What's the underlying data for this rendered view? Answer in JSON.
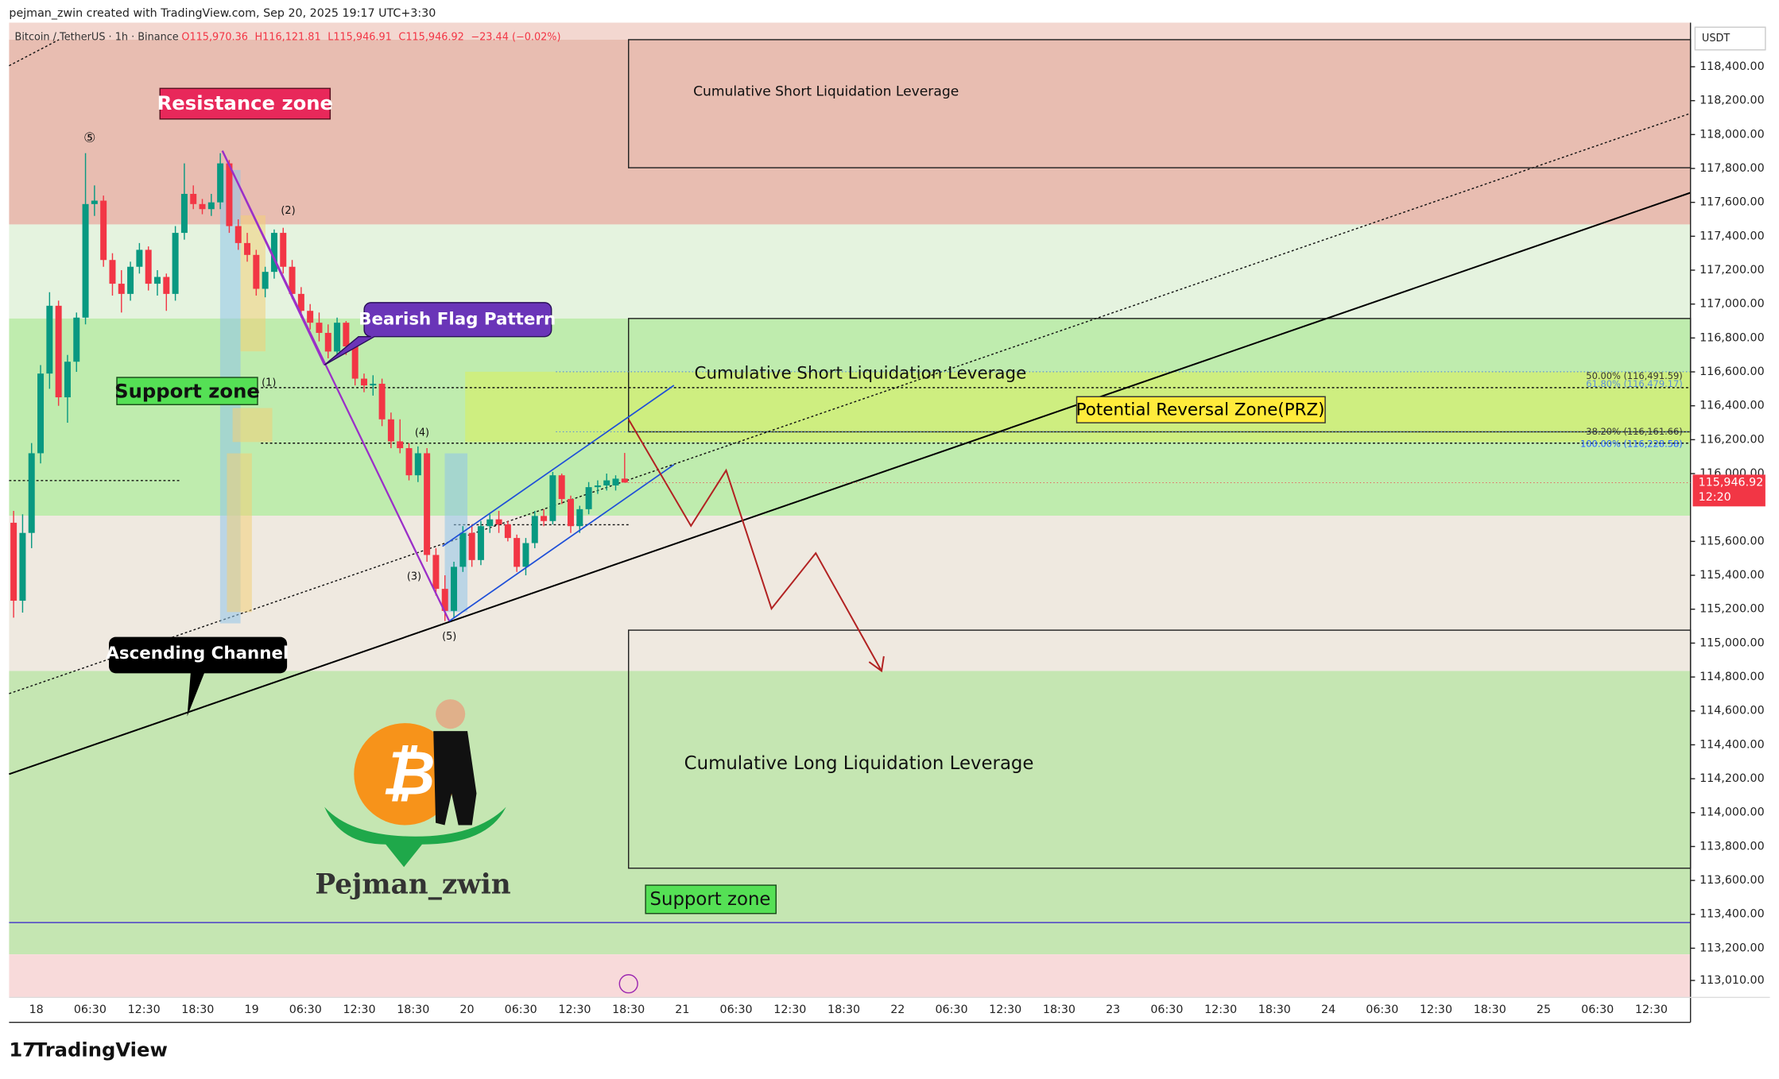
{
  "header": {
    "credit": "pejman_zwin created with TradingView.com, Sep 20, 2025 19:17 UTC+3:30",
    "symbol": "Bitcoin / TetherUS · 1h · Binance",
    "ohlc": [
      "O115,970.36",
      "H116,121.81",
      "L115,946.91",
      "C115,946.92",
      "−23.44 (−0.02%)"
    ]
  },
  "chart_data": {
    "type": "candlestick",
    "up_color": "#089981",
    "down_color": "#f23645",
    "currency": "USDT",
    "last_price_label": "115,946.92",
    "countdown": "12:20",
    "ylim": [
      112910,
      118660
    ],
    "yticks": [
      {
        "value": 113010,
        "label": "113,010.00"
      },
      {
        "value": 113200,
        "label": "113,200.00"
      },
      {
        "value": 113400,
        "label": "113,400.00"
      },
      {
        "value": 113600,
        "label": "113,600.00"
      },
      {
        "value": 113800,
        "label": "113,800.00"
      },
      {
        "value": 114000,
        "label": "114,000.00"
      },
      {
        "value": 114200,
        "label": "114,200.00"
      },
      {
        "value": 114400,
        "label": "114,400.00"
      },
      {
        "value": 114600,
        "label": "114,600.00"
      },
      {
        "value": 114800,
        "label": "114,800.00"
      },
      {
        "value": 115000,
        "label": "115,000.00"
      },
      {
        "value": 115200,
        "label": "115,200.00"
      },
      {
        "value": 115400,
        "label": "115,400.00"
      },
      {
        "value": 115600,
        "label": "115,600.00"
      },
      {
        "value": 116000,
        "label": "116,000.00"
      },
      {
        "value": 116200,
        "label": "116,200.00"
      },
      {
        "value": 116400,
        "label": "116,400.00"
      },
      {
        "value": 116600,
        "label": "116,600.00"
      },
      {
        "value": 116800,
        "label": "116,800.00"
      },
      {
        "value": 117000,
        "label": "117,000.00"
      },
      {
        "value": 117200,
        "label": "117,200.00"
      },
      {
        "value": 117400,
        "label": "117,400.00"
      },
      {
        "value": 117600,
        "label": "117,600.00"
      },
      {
        "value": 117800,
        "label": "117,800.00"
      },
      {
        "value": 118000,
        "label": "118,000.00"
      },
      {
        "value": 118200,
        "label": "118,200.00"
      },
      {
        "value": 118400,
        "label": "118,400.00"
      }
    ],
    "x_labels": [
      "18",
      "06:30",
      "12:30",
      "18:30",
      "19",
      "06:30",
      "12:30",
      "18:30",
      "20",
      "06:30",
      "12:30",
      "18:30",
      "21",
      "06:30",
      "12:30",
      "18:30",
      "22",
      "06:30",
      "12:30",
      "18:30",
      "23",
      "06:30",
      "12:30",
      "18:30",
      "24",
      "06:30",
      "12:30",
      "18:30",
      "25",
      "06:30",
      "12:30"
    ],
    "candles": [
      [
        115710,
        115780,
        115150,
        115250
      ],
      [
        115250,
        115760,
        115180,
        115650
      ],
      [
        115650,
        116180,
        115560,
        116120
      ],
      [
        116120,
        116640,
        116060,
        116590
      ],
      [
        116590,
        117070,
        116500,
        116990
      ],
      [
        116990,
        117020,
        116400,
        116450
      ],
      [
        116450,
        116700,
        116300,
        116660
      ],
      [
        116660,
        116950,
        116600,
        116920
      ],
      [
        116920,
        117890,
        116880,
        117590
      ],
      [
        117590,
        117700,
        117520,
        117610
      ],
      [
        117610,
        117640,
        117220,
        117260
      ],
      [
        117260,
        117300,
        117050,
        117120
      ],
      [
        117120,
        117200,
        116950,
        117060
      ],
      [
        117060,
        117250,
        117020,
        117220
      ],
      [
        117220,
        117360,
        117180,
        117320
      ],
      [
        117320,
        117340,
        117080,
        117120
      ],
      [
        117120,
        117200,
        117050,
        117160
      ],
      [
        117160,
        117180,
        116960,
        117060
      ],
      [
        117060,
        117460,
        117020,
        117420
      ],
      [
        117420,
        117830,
        117380,
        117650
      ],
      [
        117650,
        117700,
        117560,
        117590
      ],
      [
        117590,
        117620,
        117530,
        117560
      ],
      [
        117560,
        117650,
        117520,
        117600
      ],
      [
        117600,
        117890,
        117560,
        117830
      ],
      [
        117830,
        117850,
        117420,
        117460
      ],
      [
        117460,
        117500,
        117320,
        117360
      ],
      [
        117360,
        117420,
        117250,
        117290
      ],
      [
        117290,
        117320,
        117050,
        117090
      ],
      [
        117090,
        117220,
        117040,
        117190
      ],
      [
        117190,
        117440,
        117150,
        117420
      ],
      [
        117420,
        117450,
        117180,
        117220
      ],
      [
        117220,
        117260,
        117030,
        117060
      ],
      [
        117060,
        117100,
        116920,
        116960
      ],
      [
        116960,
        117000,
        116850,
        116890
      ],
      [
        116890,
        116950,
        116780,
        116830
      ],
      [
        116830,
        116880,
        116680,
        116720
      ],
      [
        116720,
        116920,
        116690,
        116890
      ],
      [
        116890,
        116900,
        116700,
        116750
      ],
      [
        116750,
        116780,
        116520,
        116560
      ],
      [
        116560,
        116590,
        116480,
        116520
      ],
      [
        116520,
        116580,
        116460,
        116530
      ],
      [
        116530,
        116560,
        116280,
        116320
      ],
      [
        116320,
        116360,
        116150,
        116190
      ],
      [
        116190,
        116320,
        116120,
        116150
      ],
      [
        116150,
        116180,
        115960,
        115990
      ],
      [
        115990,
        116160,
        115950,
        116120
      ],
      [
        116120,
        116150,
        115480,
        115520
      ],
      [
        115520,
        115560,
        115280,
        115320
      ],
      [
        115320,
        115400,
        115130,
        115190
      ],
      [
        115190,
        115480,
        115150,
        115450
      ],
      [
        115450,
        115690,
        115420,
        115650
      ],
      [
        115650,
        115700,
        115450,
        115490
      ],
      [
        115490,
        115720,
        115460,
        115690
      ],
      [
        115690,
        115760,
        115650,
        115730
      ],
      [
        115730,
        115780,
        115650,
        115700
      ],
      [
        115700,
        115720,
        115600,
        115620
      ],
      [
        115620,
        115640,
        115420,
        115450
      ],
      [
        115450,
        115620,
        115400,
        115590
      ],
      [
        115590,
        115780,
        115560,
        115750
      ],
      [
        115750,
        115790,
        115690,
        115720
      ],
      [
        115720,
        116010,
        115700,
        115990
      ],
      [
        115990,
        116000,
        115820,
        115850
      ],
      [
        115850,
        115870,
        115650,
        115690
      ],
      [
        115690,
        115810,
        115650,
        115790
      ],
      [
        115790,
        115950,
        115760,
        115920
      ],
      [
        115920,
        115960,
        115880,
        115930
      ],
      [
        115930,
        116000,
        115900,
        115960
      ],
      [
        115930,
        115990,
        115900,
        115970
      ],
      [
        115970.36,
        116121.81,
        115946.91,
        115946.92
      ]
    ]
  },
  "annotations": {
    "resistance": "Resistance zone",
    "support_upper": "Support zone",
    "support_lower": "Support zone",
    "bearish_flag": "Bearish Flag Pattern",
    "ascending_channel": "Ascending Channel",
    "short_liq_top": "Cumulative Short Liquidation Leverage",
    "short_liq_mid": "Cumulative Short Liquidation Leverage",
    "long_liq": "Cumulative Long Liquidation Leverage",
    "prz": "Potential Reversal Zone(PRZ)",
    "fib": [
      "50.00% (116,491.59)",
      "61.80% (116,479.17)",
      "38.20% (116,161.66)",
      "100.00% (116,228.58)"
    ],
    "waves": [
      "⑤",
      "(2)",
      "(1)",
      "(4)",
      "(3)",
      "(5)"
    ]
  },
  "branding": {
    "author": "Pejman_zwin",
    "logo": "TradingView"
  }
}
